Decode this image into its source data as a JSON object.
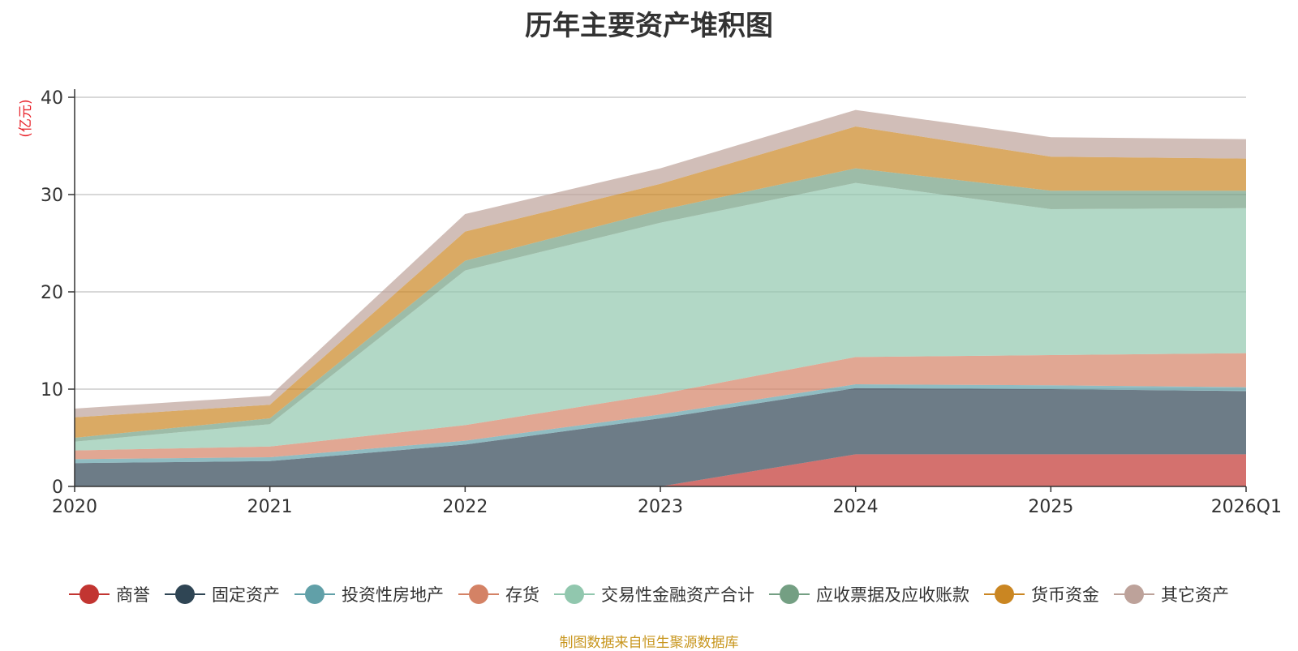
{
  "chart_data": {
    "type": "area",
    "stacked": true,
    "title": "历年主要资产堆积图",
    "ylabel": "(亿元)",
    "xlabel": "",
    "categories": [
      "2020",
      "2021",
      "2022",
      "2023",
      "2024",
      "2025",
      "2026Q1"
    ],
    "ylim": [
      0,
      40
    ],
    "yticks": [
      0,
      10,
      20,
      30,
      40
    ],
    "grid": true,
    "legend_position": "bottom",
    "series": [
      {
        "name": "商誉",
        "color": "#c23531",
        "values": [
          0,
          0,
          0,
          0,
          3.3,
          3.3,
          3.3
        ]
      },
      {
        "name": "固定资产",
        "color": "#2f4554",
        "values": [
          2.4,
          2.6,
          4.3,
          7.0,
          6.8,
          6.7,
          6.5
        ]
      },
      {
        "name": "投资性房地产",
        "color": "#61a0a8",
        "values": [
          0.4,
          0.4,
          0.4,
          0.4,
          0.4,
          0.4,
          0.4
        ]
      },
      {
        "name": "存货",
        "color": "#d48265",
        "values": [
          0.9,
          1.1,
          1.6,
          2.1,
          2.8,
          3.1,
          3.5
        ]
      },
      {
        "name": "交易性金融资产合计",
        "color": "#91c7ae",
        "values": [
          0.9,
          2.3,
          15.9,
          17.6,
          17.9,
          15.0,
          14.9
        ]
      },
      {
        "name": "应收票据及应收账款",
        "color": "#749f83",
        "values": [
          0.4,
          0.6,
          1.0,
          1.3,
          1.5,
          1.9,
          1.8
        ]
      },
      {
        "name": "货币资金",
        "color": "#ca8622",
        "values": [
          2.1,
          1.4,
          3.0,
          2.7,
          4.3,
          3.5,
          3.3
        ]
      },
      {
        "name": "其它资产",
        "color": "#bda29a",
        "values": [
          0.9,
          0.9,
          1.8,
          1.6,
          1.7,
          2.0,
          2.0
        ]
      }
    ]
  },
  "footer": {
    "source": "制图数据来自恒生聚源数据库"
  }
}
